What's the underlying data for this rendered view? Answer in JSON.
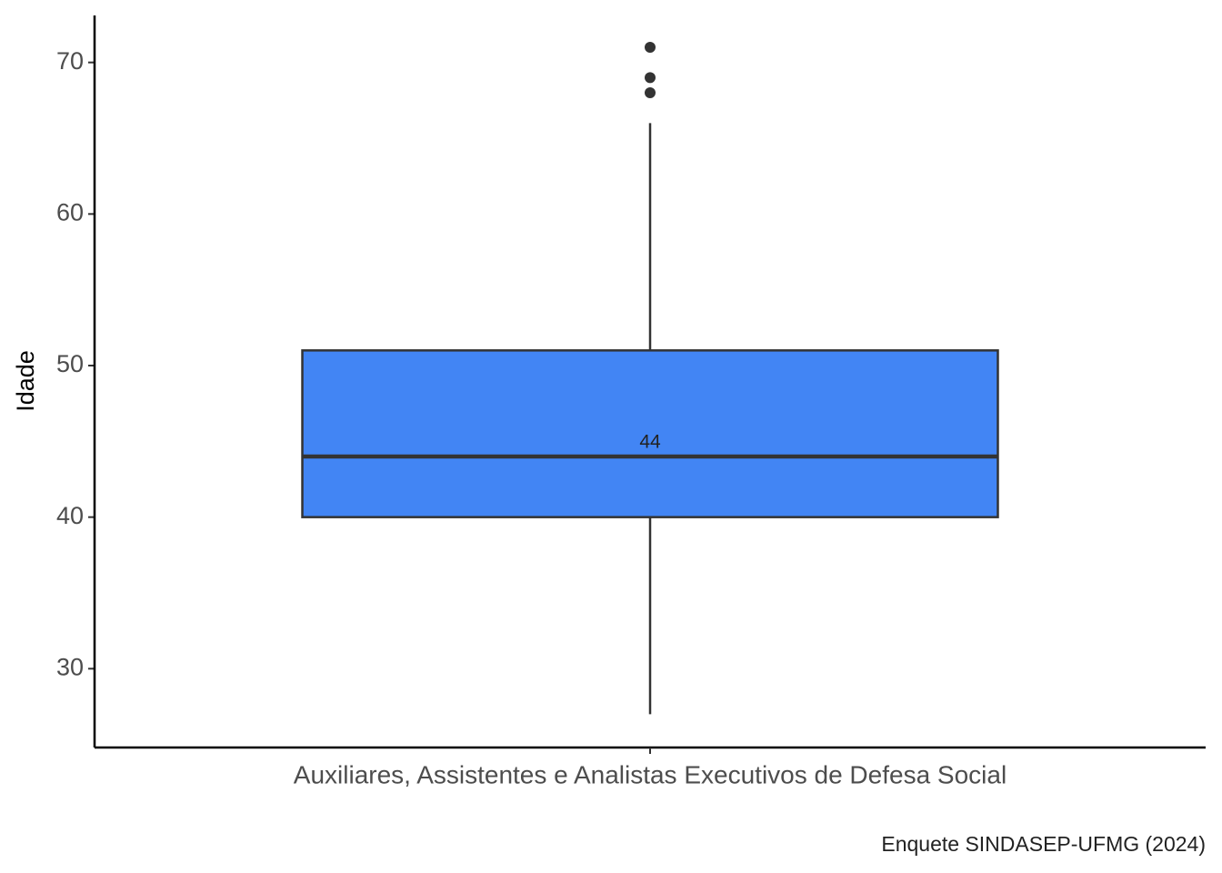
{
  "chart_data": {
    "type": "box",
    "y_label": "Idade",
    "caption": "Enquete SINDASEP-UFMG (2024)",
    "categories": [
      "Auxiliares, Assistentes e Analistas Executivos de Defesa Social"
    ],
    "boxes": [
      {
        "low": 27,
        "q1": 40,
        "median": 44,
        "q3": 51,
        "high": 66,
        "outliers": [
          71,
          69,
          68
        ]
      }
    ],
    "color": "#4285f4",
    "ylim": [
      24.8,
      73.1
    ],
    "yticks": [
      30,
      40,
      50,
      60,
      70
    ],
    "grid": false
  }
}
